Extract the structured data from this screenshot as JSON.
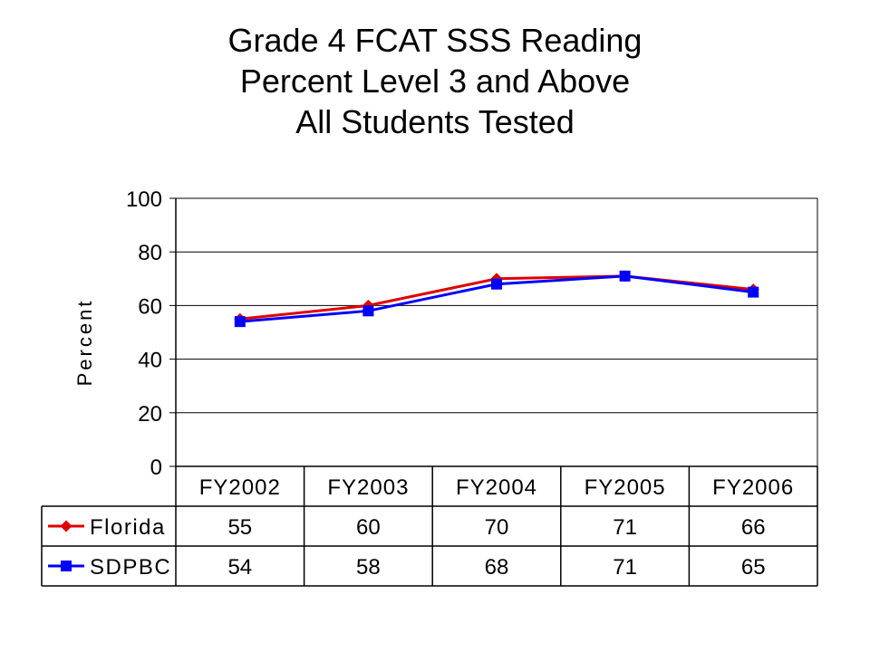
{
  "title_lines": [
    "Grade 4 FCAT SSS Reading",
    "Percent Level 3 and Above",
    "All Students Tested"
  ],
  "chart_data": {
    "type": "line",
    "title": "Grade 4 FCAT SSS Reading Percent Level 3 and Above All Students Tested",
    "xlabel": "",
    "ylabel": "Percent",
    "ylim": [
      0,
      100
    ],
    "yticks": [
      0,
      20,
      40,
      60,
      80,
      100
    ],
    "categories": [
      "FY2002",
      "FY2003",
      "FY2004",
      "FY2005",
      "FY2006"
    ],
    "series": [
      {
        "name": "Florida",
        "values": [
          55,
          60,
          70,
          71,
          66
        ],
        "color": "#e00000",
        "marker": "diamond"
      },
      {
        "name": "SDPBC",
        "values": [
          54,
          58,
          68,
          71,
          65
        ],
        "color": "#0000ff",
        "marker": "square"
      }
    ],
    "grid": true,
    "legend": "data-table"
  }
}
